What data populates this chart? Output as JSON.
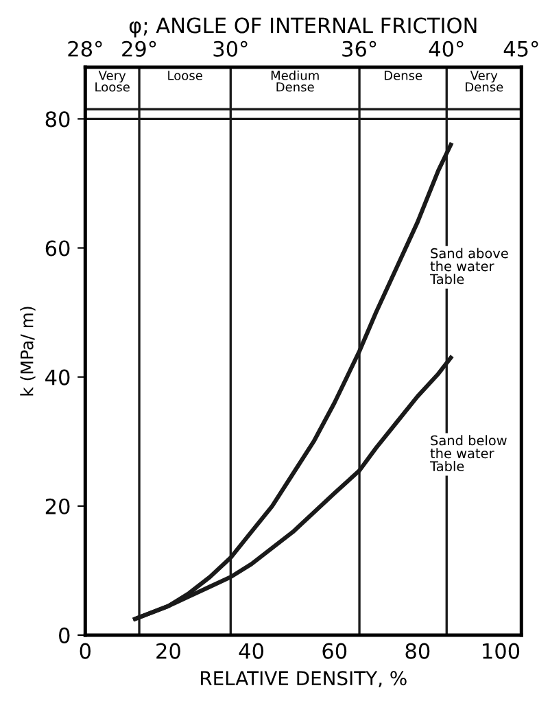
{
  "chart_data": {
    "type": "line",
    "x2label": "φ; ANGLE OF INTERNAL FRICTION",
    "xlabel": "RELATIVE DENSITY, %",
    "ylabel": "k (MPa/ m)",
    "xlim": [
      0,
      105
    ],
    "xticks": [
      0,
      20,
      40,
      60,
      80,
      100
    ],
    "ylim": [
      0,
      88
    ],
    "yticks": [
      0,
      20,
      40,
      60,
      80
    ],
    "grid": false,
    "marker": "none",
    "line_style": "solid",
    "series": [
      {
        "name": "Sand above the water Table",
        "color": "#1a1a1a",
        "x": [
          12,
          20,
          25,
          30,
          35,
          40,
          45,
          50,
          55,
          60,
          66,
          70,
          75,
          80,
          85,
          88
        ],
        "values": [
          2.5,
          4.5,
          6.5,
          9,
          12,
          16,
          20,
          25,
          30,
          36,
          44,
          50,
          57,
          64,
          72,
          76
        ]
      },
      {
        "name": "Sand below the water Table",
        "color": "#1a1a1a",
        "x": [
          12,
          20,
          25,
          30,
          35,
          40,
          45,
          50,
          55,
          60,
          66,
          70,
          75,
          80,
          85,
          88
        ],
        "values": [
          2.5,
          4.5,
          6,
          7.5,
          9,
          11,
          13.5,
          16,
          19,
          22,
          25.5,
          29,
          33,
          37,
          40.5,
          43
        ]
      }
    ],
    "ref_lines": [
      {
        "axis": "x",
        "value": 13,
        "label": null
      },
      {
        "axis": "x",
        "value": 35,
        "label": null
      },
      {
        "axis": "x",
        "value": 66,
        "label": null
      },
      {
        "axis": "x",
        "value": 87,
        "label": null
      },
      {
        "axis": "y",
        "value": 80,
        "label": null
      },
      {
        "axis": "y",
        "value": 81.5,
        "label": null
      }
    ],
    "annotations": [
      "28°",
      "29°",
      "30°",
      "36°",
      "40°",
      "45°",
      "Very Loose",
      "Loose",
      "Medium Dense",
      "Dense",
      "Very Dense"
    ]
  }
}
